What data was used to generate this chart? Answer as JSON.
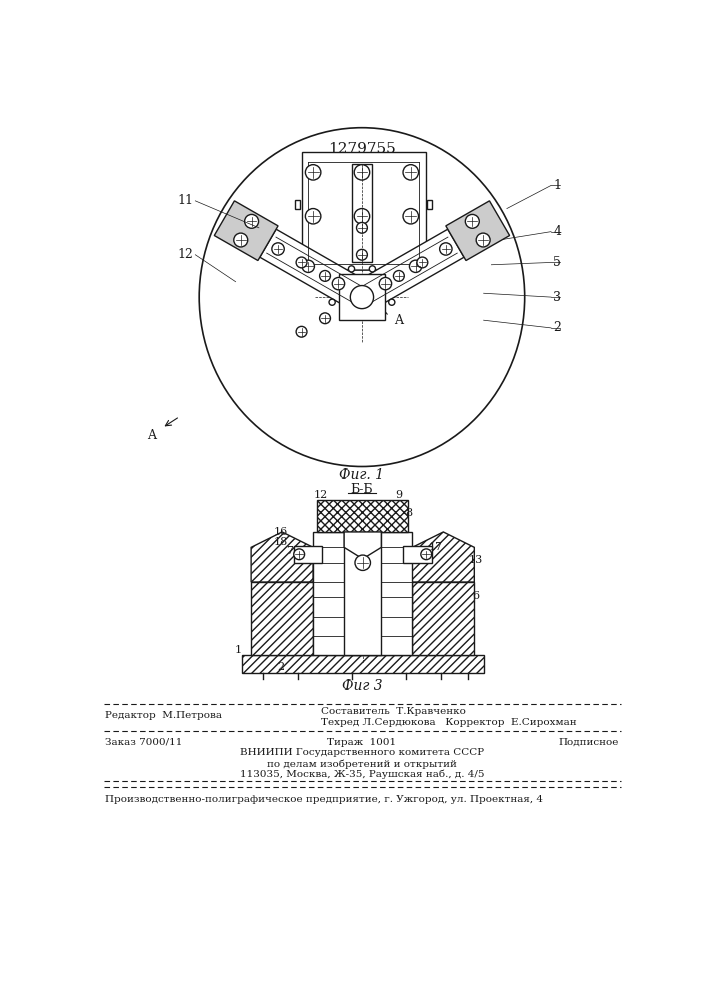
{
  "patent_number": "1279755",
  "background_color": "#ffffff",
  "fig1_caption": "Фиг. 1",
  "fig3_caption": "Фиг 3",
  "section_label": "Б-Б",
  "footer_line1_left": "Редактор  М.Петрова",
  "footer_line1_center": "Составитель  Т.Кравченко",
  "footer_line2_center": "Техред Л.Сердюкова   Корректор  Е.Сирохман",
  "footer_line3_left": "Заказ 7000/11",
  "footer_line3_center": "Тираж  1001",
  "footer_line3_right": "Подписное",
  "footer_line4": "ВНИИПИ Государственного комитета СССР",
  "footer_line5": "по делам изобретений и открытий",
  "footer_line6": "113035, Москва, Ж-35, Раушская наб., д. 4/5",
  "footer_bottom": "Производственно-полиграфическое предприятие, г. Ужгород, ул. Проектная, 4",
  "lc": "#1a1a1a",
  "tc": "#1a1a1a"
}
